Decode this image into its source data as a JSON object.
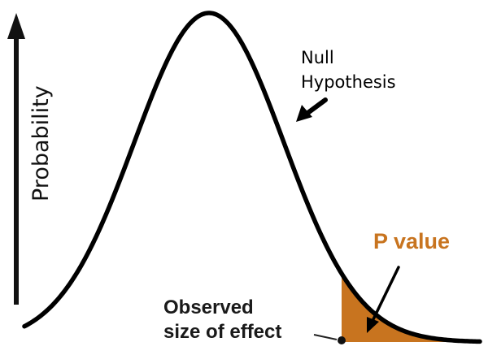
{
  "diagram": {
    "y_axis_label": "Probability",
    "curve_label_line1": "Null",
    "curve_label_line2": "Hypothesis",
    "tail_label": "P value",
    "marker_label_line1": "Observed",
    "marker_label_line2": "size of effect"
  },
  "colors": {
    "curve": "#000000",
    "tail_fill": "#c8741f",
    "tail_label": "#c8741f",
    "text": "#1a1a1a"
  }
}
